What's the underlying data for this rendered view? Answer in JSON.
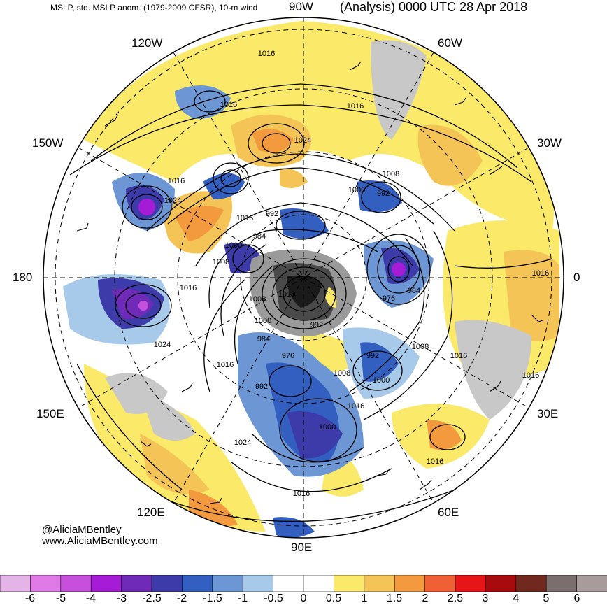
{
  "header": {
    "left": "MSLP, std. MSLP anom. (1979-2009 CFSR), 10-m wind",
    "right": "(Analysis) 0000 UTC 28 Apr 2018"
  },
  "lon_labels": {
    "w90": "90W",
    "w120": "120W",
    "w60": "60W",
    "w150": "150W",
    "w30": "30W",
    "d180": "180",
    "d0": "0",
    "e150": "150E",
    "e30": "30E",
    "e120": "120E",
    "e60": "60E",
    "e90": "90E"
  },
  "credit": {
    "handle": "@AliciaMBentley",
    "site": "www.AliciaMBentley.com"
  },
  "contour_labels": [
    "1016",
    "1016",
    "1016",
    "1024",
    "1016",
    "1024",
    "992",
    "1008",
    "1000",
    "992",
    "1016",
    "984",
    "1000",
    "1008",
    "1016",
    "1016",
    "1008",
    "976",
    "984",
    "1016",
    "1000",
    "992",
    "984",
    "1024",
    "976",
    "992",
    "1008",
    "1016",
    "992",
    "1016",
    "1000",
    "1008",
    "1016",
    "1024",
    "1000",
    "1016",
    "1016",
    "1016"
  ],
  "colorbar": {
    "ticks": [
      "-6",
      "-5",
      "-4",
      "-3",
      "-2.5",
      "-2",
      "-1.5",
      "-1",
      "-0.5",
      "0",
      "0.5",
      "1",
      "1.5",
      "2",
      "2.5",
      "3",
      "4",
      "5",
      "6"
    ],
    "colors": [
      "#e4b3e8",
      "#e07ae6",
      "#c64fdc",
      "#a51bd6",
      "#6f2ab8",
      "#3d3aaa",
      "#3360c0",
      "#6d97d4",
      "#a7c9ea",
      "#ffffff",
      "#ffffff",
      "#fbe96a",
      "#f5c457",
      "#f39a3f",
      "#ef6134",
      "#e61517",
      "#a80b0e",
      "#70281f",
      "#7a6e6e",
      "#a89b9b"
    ]
  }
}
